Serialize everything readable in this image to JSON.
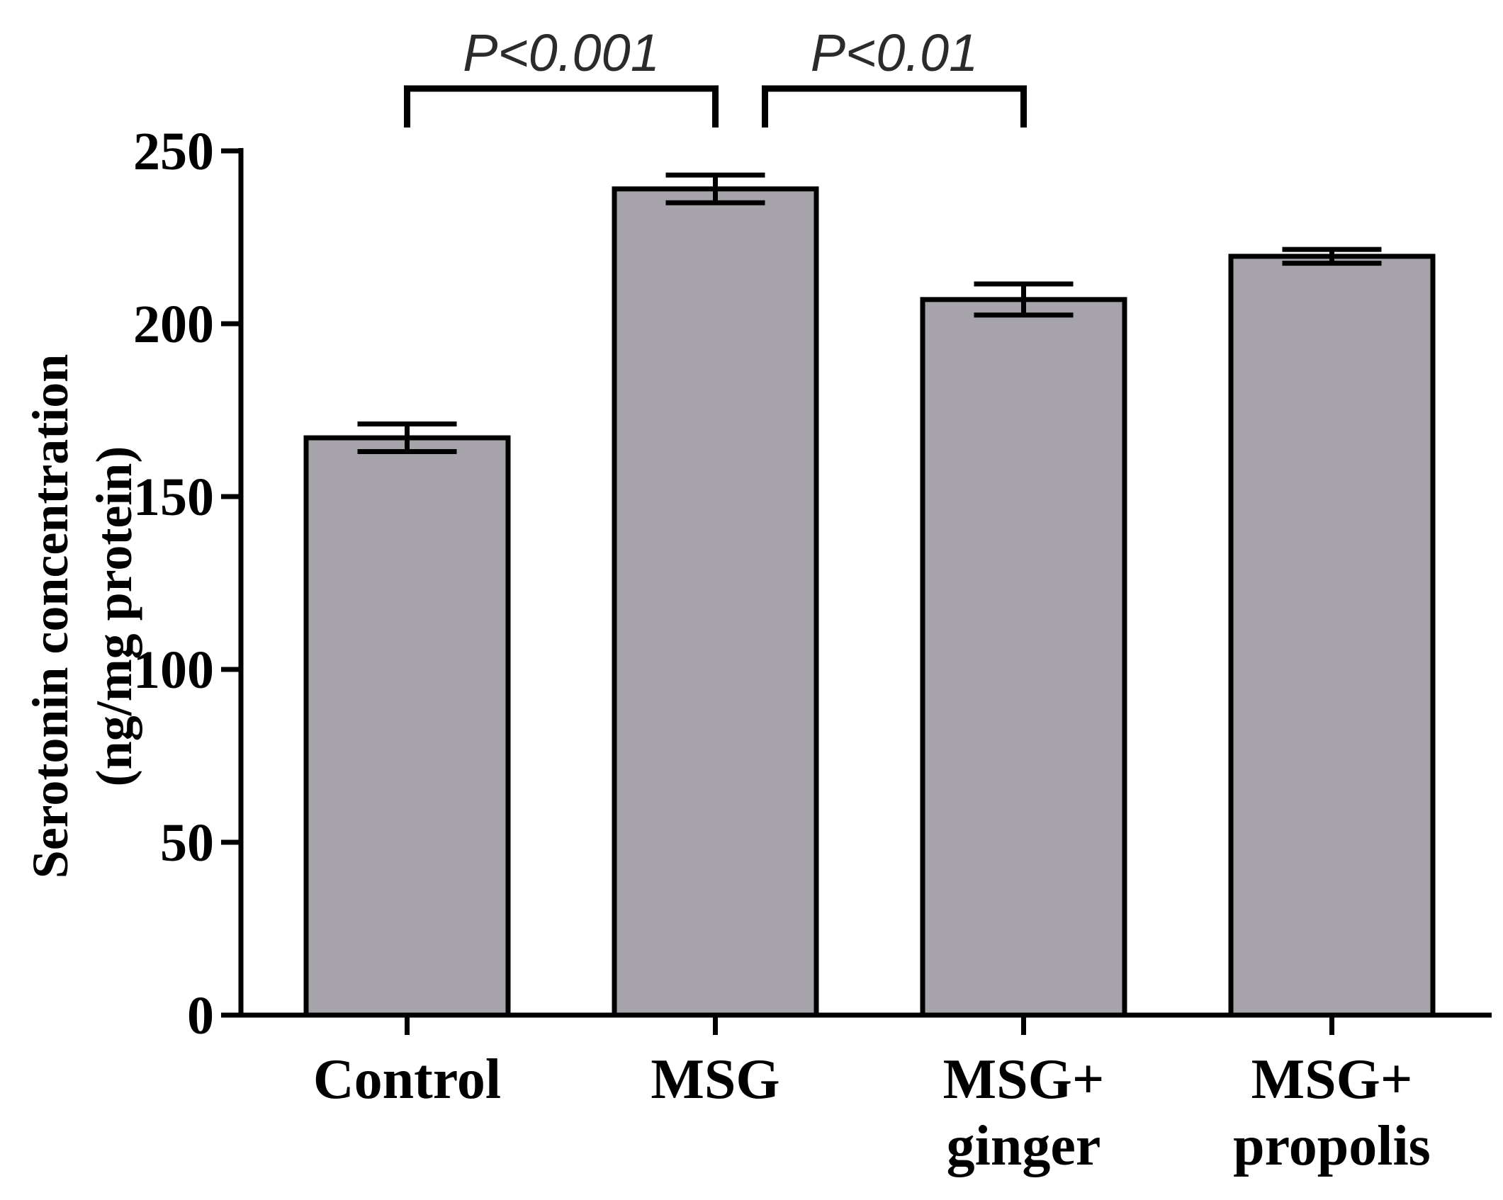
{
  "chart_data": {
    "type": "bar",
    "title": "",
    "xlabel": "",
    "ylabel": [
      "Serotonin concentration",
      "(ng/mg protein)"
    ],
    "ylim": [
      0,
      250
    ],
    "yticks": [
      0,
      50,
      100,
      150,
      200,
      250
    ],
    "categories": [
      [
        "Control"
      ],
      [
        "MSG"
      ],
      [
        "MSG+",
        "ginger"
      ],
      [
        "MSG+",
        "propolis"
      ]
    ],
    "series": [
      {
        "name": "Serotonin",
        "values": [
          167,
          239,
          207,
          219.5
        ],
        "errors": [
          4,
          4,
          4.5,
          2
        ]
      }
    ],
    "annotations": [
      {
        "text": "P<0.001",
        "from": 0,
        "to": 1,
        "y": 268
      },
      {
        "text": "P<0.01",
        "from": 1,
        "to": 2,
        "y": 268
      }
    ],
    "grid": false,
    "legend": "none",
    "colors": {
      "bar_fill": "#a6a4aa",
      "bar_stroke": "#000000",
      "axis": "#000000",
      "annotation": "#2b2b2b"
    }
  }
}
